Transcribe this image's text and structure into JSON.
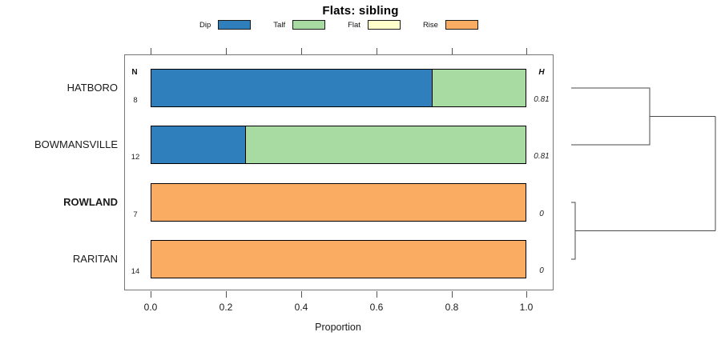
{
  "title": "Flats: sibling",
  "legend": {
    "items": [
      {
        "label": "Dip",
        "color": "#2E7FBC"
      },
      {
        "label": "Talf",
        "color": "#A7DBA2"
      },
      {
        "label": "Flat",
        "color": "#FFFFCC"
      },
      {
        "label": "Rise",
        "color": "#FBAC63"
      }
    ]
  },
  "columns": {
    "n_header": "N",
    "h_header": "H"
  },
  "axis": {
    "label": "Proportion",
    "ticks": [
      "0.0",
      "0.2",
      "0.4",
      "0.6",
      "0.8",
      "1.0"
    ]
  },
  "chart_data": {
    "type": "bar",
    "orientation": "horizontal-stacked",
    "title": "Flats: sibling",
    "xlabel": "Proportion",
    "xlim": [
      0,
      1
    ],
    "grid": false,
    "legend_position": "top",
    "categories": [
      "HATBORO",
      "BOWMANSVILLE",
      "ROWLAND",
      "RARITAN"
    ],
    "series": [
      {
        "name": "Dip",
        "color": "#2E7FBC",
        "values": [
          0.75,
          0.25,
          0,
          0
        ]
      },
      {
        "name": "Talf",
        "color": "#A7DBA2",
        "values": [
          0.25,
          0.75,
          0,
          0
        ]
      },
      {
        "name": "Flat",
        "color": "#FFFFCC",
        "values": [
          0,
          0,
          0,
          0
        ]
      },
      {
        "name": "Rise",
        "color": "#FBAC63",
        "values": [
          0,
          0,
          1.0,
          1.0
        ]
      }
    ],
    "rows": [
      {
        "label": "HATBORO",
        "bold": false,
        "n": "8",
        "h": "0.81"
      },
      {
        "label": "BOWMANSVILLE",
        "bold": false,
        "n": "12",
        "h": "0.81"
      },
      {
        "label": "ROWLAND",
        "bold": true,
        "n": "7",
        "h": "0"
      },
      {
        "label": "RARITAN",
        "bold": false,
        "n": "14",
        "h": "0"
      }
    ],
    "dendrogram": {
      "position": "right",
      "joins": [
        {
          "members": [
            "HATBORO",
            "BOWMANSVILLE"
          ],
          "relative_height": 0.55
        },
        {
          "members": [
            "ROWLAND",
            "RARITAN"
          ],
          "relative_height": 0.03
        },
        {
          "members": [
            "HATBORO+BOWMANSVILLE",
            "ROWLAND+RARITAN"
          ],
          "relative_height": 1.0
        }
      ]
    }
  }
}
